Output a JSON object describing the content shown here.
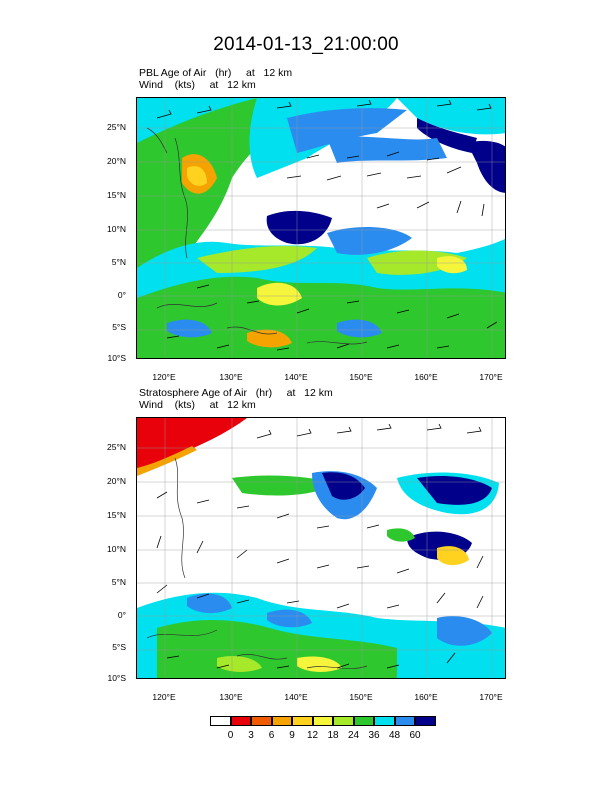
{
  "title": "2014-01-13_21:00:00",
  "panels": [
    {
      "line1": "PBL Age of Air   (hr)     at   12 km",
      "line2": "Wind    (kts)     at   12 km",
      "lat_labels": [
        "25°N",
        "20°N",
        "15°N",
        "10°N",
        "5°N",
        "0°",
        "5°S",
        "10°S"
      ],
      "lon_labels": [
        "120°E",
        "130°E",
        "140°E",
        "150°E",
        "160°E",
        "170°E"
      ]
    },
    {
      "line1": "Stratosphere Age of Air   (hr)     at   12 km",
      "line2": "Wind    (kts)     at   12 km",
      "lat_labels": [
        "25°N",
        "20°N",
        "15°N",
        "10°N",
        "5°N",
        "0°",
        "5°S",
        "10°S"
      ],
      "lon_labels": [
        "120°E",
        "130°E",
        "140°E",
        "150°E",
        "160°E",
        "170°E"
      ]
    }
  ],
  "colorbar": {
    "labels": [
      "0",
      "3",
      "6",
      "9",
      "12",
      "18",
      "24",
      "36",
      "48",
      "60"
    ],
    "colors": [
      "#ffffff",
      "#e8000b",
      "#f05a00",
      "#f5a300",
      "#ffd21f",
      "#f5f53c",
      "#a6e82a",
      "#2ec72e",
      "#00e0ef",
      "#2b8cf0",
      "#00008b"
    ]
  }
}
